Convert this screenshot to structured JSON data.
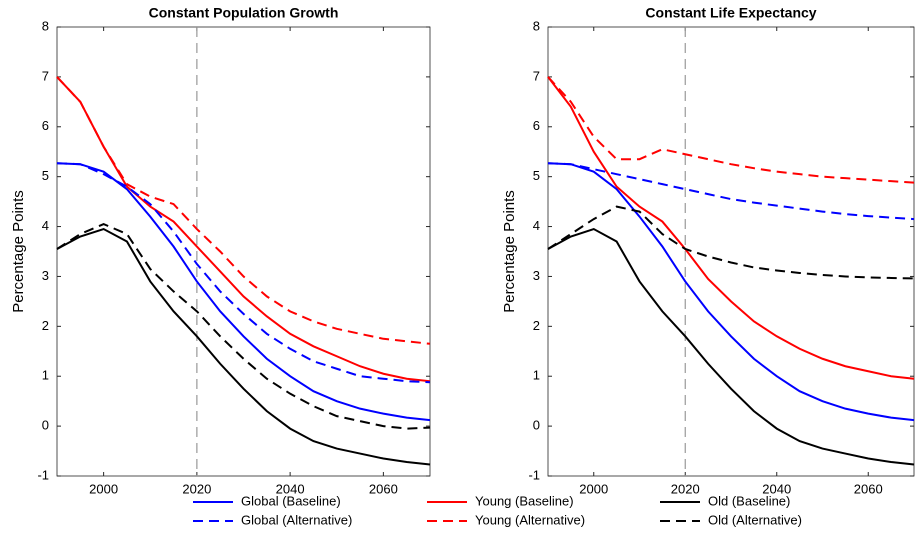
{
  "chart_data": [
    {
      "type": "line",
      "title": "Constant Population Growth",
      "ylabel": "Percentage Points",
      "x": [
        1990,
        1995,
        2000,
        2005,
        2010,
        2015,
        2020,
        2025,
        2030,
        2035,
        2040,
        2045,
        2050,
        2055,
        2060,
        2065,
        2070
      ],
      "xlim": [
        1990,
        2070
      ],
      "xticks": [
        2000,
        2020,
        2040,
        2060
      ],
      "ylim": [
        -1,
        8
      ],
      "yticks": [
        -1,
        0,
        1,
        2,
        3,
        4,
        5,
        6,
        7,
        8
      ],
      "vline": 2020,
      "series": [
        {
          "name": "Global (Baseline)",
          "color": "#0000ff",
          "dashed": false,
          "values": [
            5.27,
            5.25,
            5.1,
            4.75,
            4.2,
            3.6,
            2.9,
            2.3,
            1.8,
            1.35,
            1.0,
            0.7,
            0.5,
            0.35,
            0.25,
            0.17,
            0.12
          ]
        },
        {
          "name": "Young (Baseline)",
          "color": "#ff0000",
          "dashed": false,
          "values": [
            7.0,
            6.5,
            5.6,
            4.8,
            4.4,
            4.1,
            3.6,
            3.1,
            2.6,
            2.2,
            1.85,
            1.6,
            1.4,
            1.2,
            1.05,
            0.95,
            0.9
          ]
        },
        {
          "name": "Old (Baseline)",
          "color": "#000000",
          "dashed": false,
          "values": [
            3.55,
            3.8,
            3.95,
            3.7,
            2.9,
            2.3,
            1.8,
            1.25,
            0.75,
            0.3,
            -0.05,
            -0.3,
            -0.45,
            -0.55,
            -0.65,
            -0.72,
            -0.77
          ]
        },
        {
          "name": "Global (Alternative)",
          "color": "#0000ff",
          "dashed": true,
          "values": [
            5.27,
            5.25,
            5.05,
            4.8,
            4.45,
            3.9,
            3.25,
            2.7,
            2.25,
            1.85,
            1.55,
            1.3,
            1.15,
            1.0,
            0.95,
            0.9,
            0.88
          ]
        },
        {
          "name": "Young (Alternative)",
          "color": "#ff0000",
          "dashed": true,
          "values": [
            7.0,
            6.5,
            5.6,
            4.85,
            4.6,
            4.45,
            3.95,
            3.5,
            3.0,
            2.6,
            2.3,
            2.1,
            1.95,
            1.85,
            1.75,
            1.7,
            1.65
          ]
        },
        {
          "name": "Old (Alternative)",
          "color": "#000000",
          "dashed": true,
          "values": [
            3.55,
            3.85,
            4.05,
            3.85,
            3.15,
            2.7,
            2.3,
            1.8,
            1.35,
            0.95,
            0.65,
            0.4,
            0.2,
            0.1,
            0.0,
            -0.05,
            -0.03
          ]
        }
      ]
    },
    {
      "type": "line",
      "title": "Constant Life Expectancy",
      "ylabel": "Percentage Points",
      "x": [
        1990,
        1995,
        2000,
        2005,
        2010,
        2015,
        2020,
        2025,
        2030,
        2035,
        2040,
        2045,
        2050,
        2055,
        2060,
        2065,
        2070
      ],
      "xlim": [
        1990,
        2070
      ],
      "xticks": [
        2000,
        2020,
        2040,
        2060
      ],
      "ylim": [
        -1,
        8
      ],
      "yticks": [
        -1,
        0,
        1,
        2,
        3,
        4,
        5,
        6,
        7,
        8
      ],
      "vline": 2020,
      "series": [
        {
          "color": "#0000ff",
          "dashed": false,
          "values": [
            5.27,
            5.25,
            5.1,
            4.75,
            4.2,
            3.6,
            2.9,
            2.3,
            1.8,
            1.35,
            1.0,
            0.7,
            0.5,
            0.35,
            0.25,
            0.17,
            0.12
          ]
        },
        {
          "color": "#ff0000",
          "dashed": false,
          "values": [
            7.0,
            6.4,
            5.5,
            4.8,
            4.4,
            4.1,
            3.55,
            2.95,
            2.5,
            2.1,
            1.8,
            1.55,
            1.35,
            1.2,
            1.1,
            1.0,
            0.95
          ]
        },
        {
          "color": "#000000",
          "dashed": false,
          "values": [
            3.55,
            3.8,
            3.95,
            3.7,
            2.9,
            2.3,
            1.8,
            1.25,
            0.75,
            0.3,
            -0.05,
            -0.3,
            -0.45,
            -0.55,
            -0.65,
            -0.72,
            -0.77
          ]
        },
        {
          "color": "#0000ff",
          "dashed": true,
          "values": [
            5.27,
            5.25,
            5.15,
            5.05,
            4.95,
            4.85,
            4.75,
            4.65,
            4.55,
            4.48,
            4.42,
            4.36,
            4.3,
            4.25,
            4.21,
            4.18,
            4.15
          ]
        },
        {
          "color": "#ff0000",
          "dashed": true,
          "values": [
            7.0,
            6.5,
            5.8,
            5.35,
            5.35,
            5.55,
            5.45,
            5.35,
            5.25,
            5.17,
            5.1,
            5.05,
            5.0,
            4.97,
            4.94,
            4.91,
            4.88
          ]
        },
        {
          "color": "#000000",
          "dashed": true,
          "values": [
            3.55,
            3.85,
            4.15,
            4.4,
            4.3,
            3.85,
            3.55,
            3.4,
            3.28,
            3.18,
            3.12,
            3.07,
            3.03,
            3.0,
            2.98,
            2.97,
            2.96
          ]
        }
      ]
    }
  ]
}
